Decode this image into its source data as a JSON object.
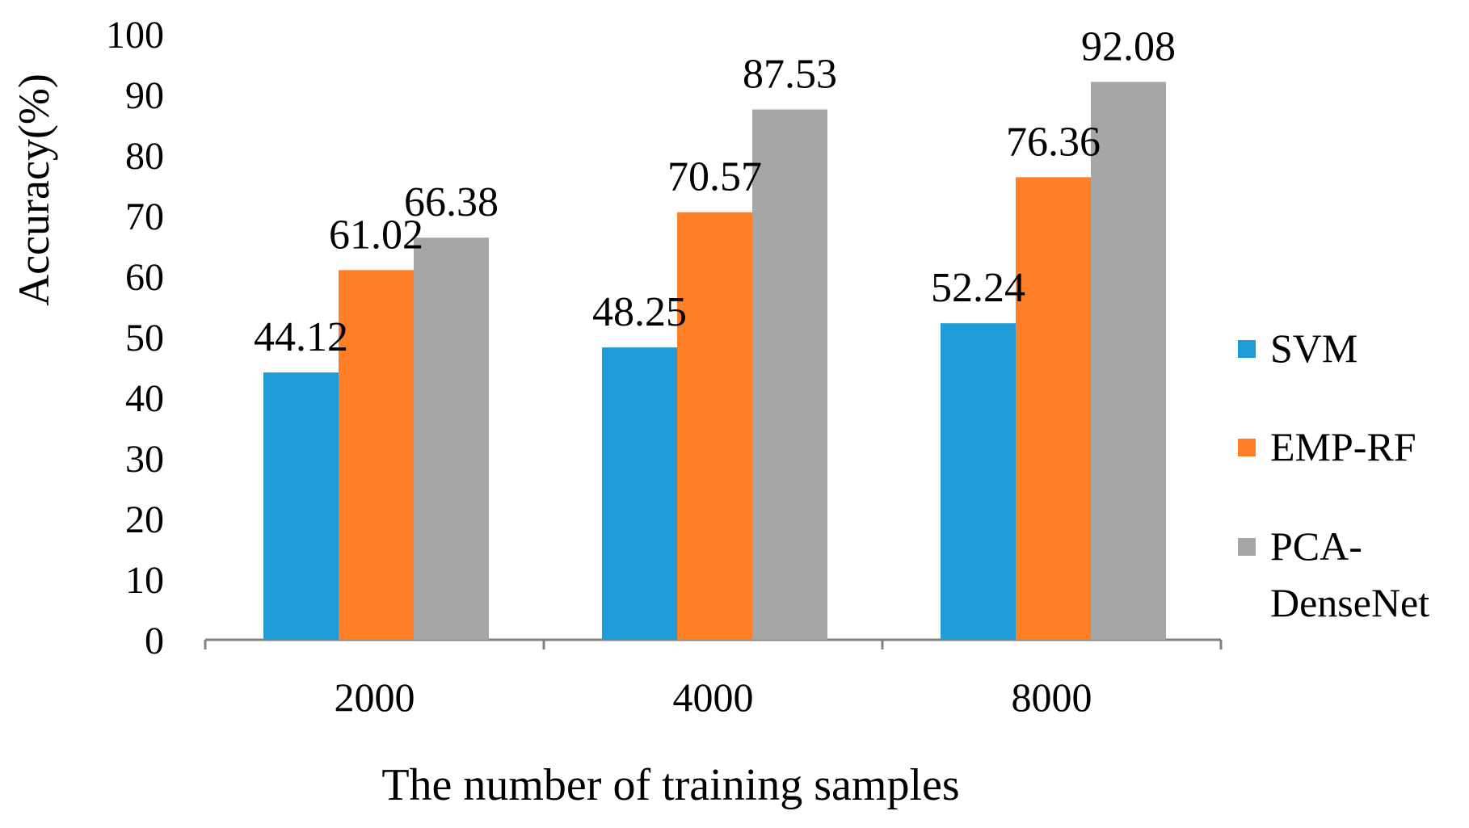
{
  "chart_data": {
    "type": "bar",
    "title": "",
    "xlabel": "The number of training samples",
    "ylabel": "Accuracy(%)",
    "ylim": [
      0,
      100
    ],
    "yticks": [
      "0",
      "10",
      "20",
      "30",
      "40",
      "50",
      "60",
      "70",
      "80",
      "90",
      "100"
    ],
    "grid": false,
    "legend_position": "right",
    "categories": [
      "2000",
      "4000",
      "8000"
    ],
    "series": [
      {
        "name": "SVM",
        "color": "#1F9BD7",
        "values": [
          44.12,
          48.25,
          52.24
        ],
        "labels": [
          "44.12",
          "48.25",
          "52.24"
        ]
      },
      {
        "name": "EMP-RF",
        "color": "#FF7F27",
        "values": [
          61.02,
          70.57,
          76.36
        ],
        "labels": [
          "61.02",
          "70.57",
          "76.36"
        ]
      },
      {
        "name": "PCA-DenseNet",
        "color": "#A6A6A6",
        "values": [
          66.38,
          87.53,
          92.08
        ],
        "labels": [
          "66.38",
          "87.53",
          "92.08"
        ]
      }
    ],
    "legend_text": [
      [
        "SVM"
      ],
      [
        "EMP-RF"
      ],
      [
        "PCA-",
        "DenseNet"
      ]
    ],
    "axis_color": "#808080"
  }
}
